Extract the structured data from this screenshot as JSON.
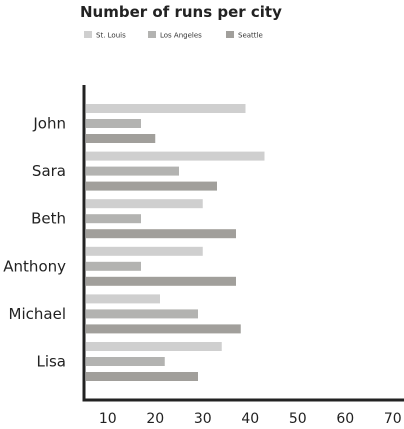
{
  "chart_data": {
    "type": "bar",
    "orientation": "horizontal",
    "title": "Number of runs per city",
    "categories": [
      "John",
      "Sara",
      "Beth",
      "Anthony",
      "Michael",
      "Lisa"
    ],
    "series": [
      {
        "name": "St. Louis",
        "color": "#cfcfcf",
        "values": [
          39,
          43,
          30,
          30,
          21,
          34
        ]
      },
      {
        "name": "Los Angeles",
        "color": "#b3b3b1",
        "values": [
          17,
          25,
          17,
          17,
          29,
          22
        ]
      },
      {
        "name": "Seattle",
        "color": "#a19f9b",
        "values": [
          20,
          33,
          37,
          37,
          38,
          29
        ]
      }
    ],
    "xlim": [
      5,
      73
    ],
    "xticks": [
      10,
      20,
      30,
      40,
      50,
      60,
      70
    ],
    "legend_position": "top-left",
    "grid": false,
    "xlabel": "",
    "ylabel": ""
  }
}
